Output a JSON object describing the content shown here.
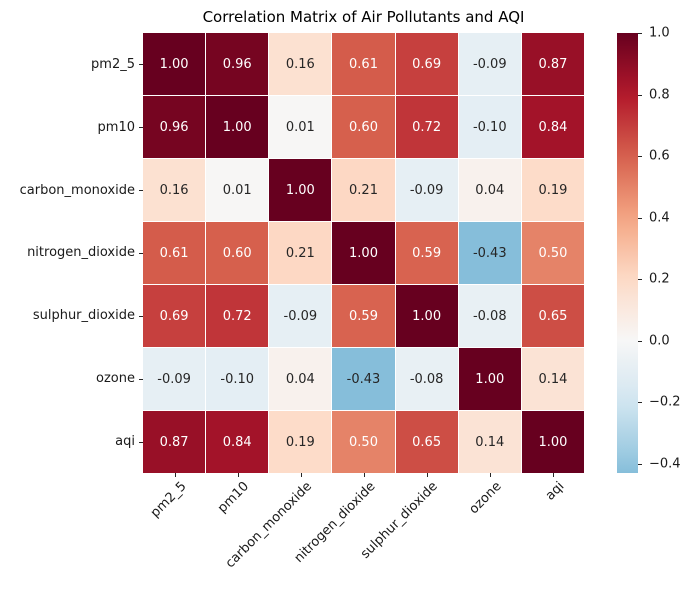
{
  "title": "Correlation Matrix of Air Pollutants and AQI",
  "chart_data": {
    "type": "heatmap",
    "title": "Correlation Matrix of Air Pollutants and AQI",
    "categories": [
      "pm2_5",
      "pm10",
      "carbon_monoxide",
      "nitrogen_dioxide",
      "sulphur_dioxide",
      "ozone",
      "aqi"
    ],
    "matrix": [
      [
        1.0,
        0.96,
        0.16,
        0.61,
        0.69,
        -0.09,
        0.87
      ],
      [
        0.96,
        1.0,
        0.01,
        0.6,
        0.72,
        -0.1,
        0.84
      ],
      [
        0.16,
        0.01,
        1.0,
        0.21,
        -0.09,
        0.04,
        0.19
      ],
      [
        0.61,
        0.6,
        0.21,
        1.0,
        0.59,
        -0.43,
        0.5
      ],
      [
        0.69,
        0.72,
        -0.09,
        0.59,
        1.0,
        -0.08,
        0.65
      ],
      [
        -0.09,
        -0.1,
        0.04,
        -0.43,
        -0.08,
        1.0,
        0.14
      ],
      [
        0.87,
        0.84,
        0.19,
        0.5,
        0.65,
        0.14,
        1.0
      ]
    ],
    "value_decimals": 2,
    "colormap": {
      "name": "RdBu_r",
      "center": 0,
      "vrange": 1.0,
      "vmin": -0.43,
      "vmax": 1.0,
      "anchors": [
        "#053061",
        "#2166ac",
        "#4393c3",
        "#92c5de",
        "#d1e5f0",
        "#f7f7f7",
        "#fddbc7",
        "#f4a582",
        "#d6604d",
        "#b2182b",
        "#67001f"
      ]
    },
    "annotation_colors": {
      "light": "#ffffff",
      "dark": "#262626"
    },
    "colorbar": {
      "tick_labels": [
        "1.0",
        "0.8",
        "0.6",
        "0.4",
        "0.2",
        "0.0",
        "−0.2",
        "−0.4"
      ],
      "tick_values": [
        1.0,
        0.8,
        0.6,
        0.4,
        0.2,
        0.0,
        -0.2,
        -0.4
      ]
    },
    "grid_line_color": "#ffffff",
    "legend_position": "right-colorbar"
  }
}
